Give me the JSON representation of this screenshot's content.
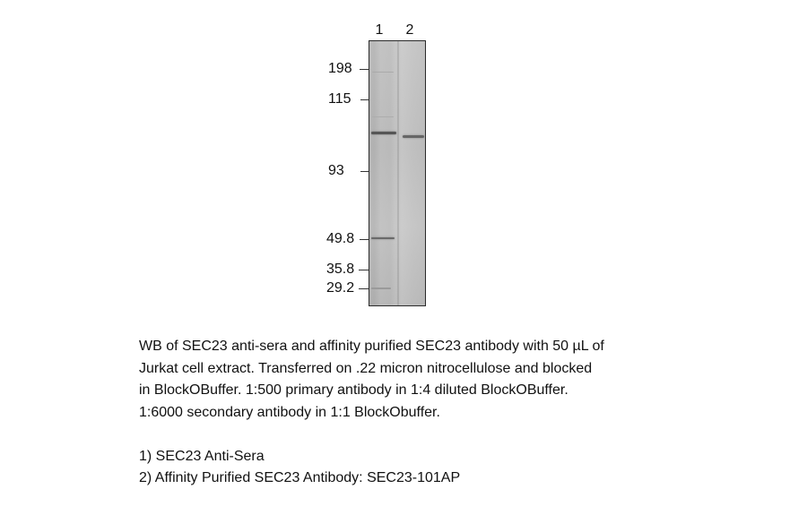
{
  "lanes": [
    "1",
    "2"
  ],
  "markers": [
    "198",
    "115",
    "93",
    "49.8",
    "35.8",
    "29.2"
  ],
  "caption": {
    "lines": [
      "WB of SEC23 anti-sera and affinity purified SEC23 antibody with 50 µL of",
      "Jurkat cell extract. Transferred on .22 micron nitrocellulose and blocked",
      "in BlockOBuffer.  1:500 primary antibody in 1:4 diluted BlockOBuffer.",
      "1:6000 secondary antibody in 1:1 BlockObuffer."
    ],
    "legend": [
      "1) SEC23 Anti-Sera",
      "2) Affinity Purified SEC23 Antibody:  SEC23-101AP"
    ]
  }
}
